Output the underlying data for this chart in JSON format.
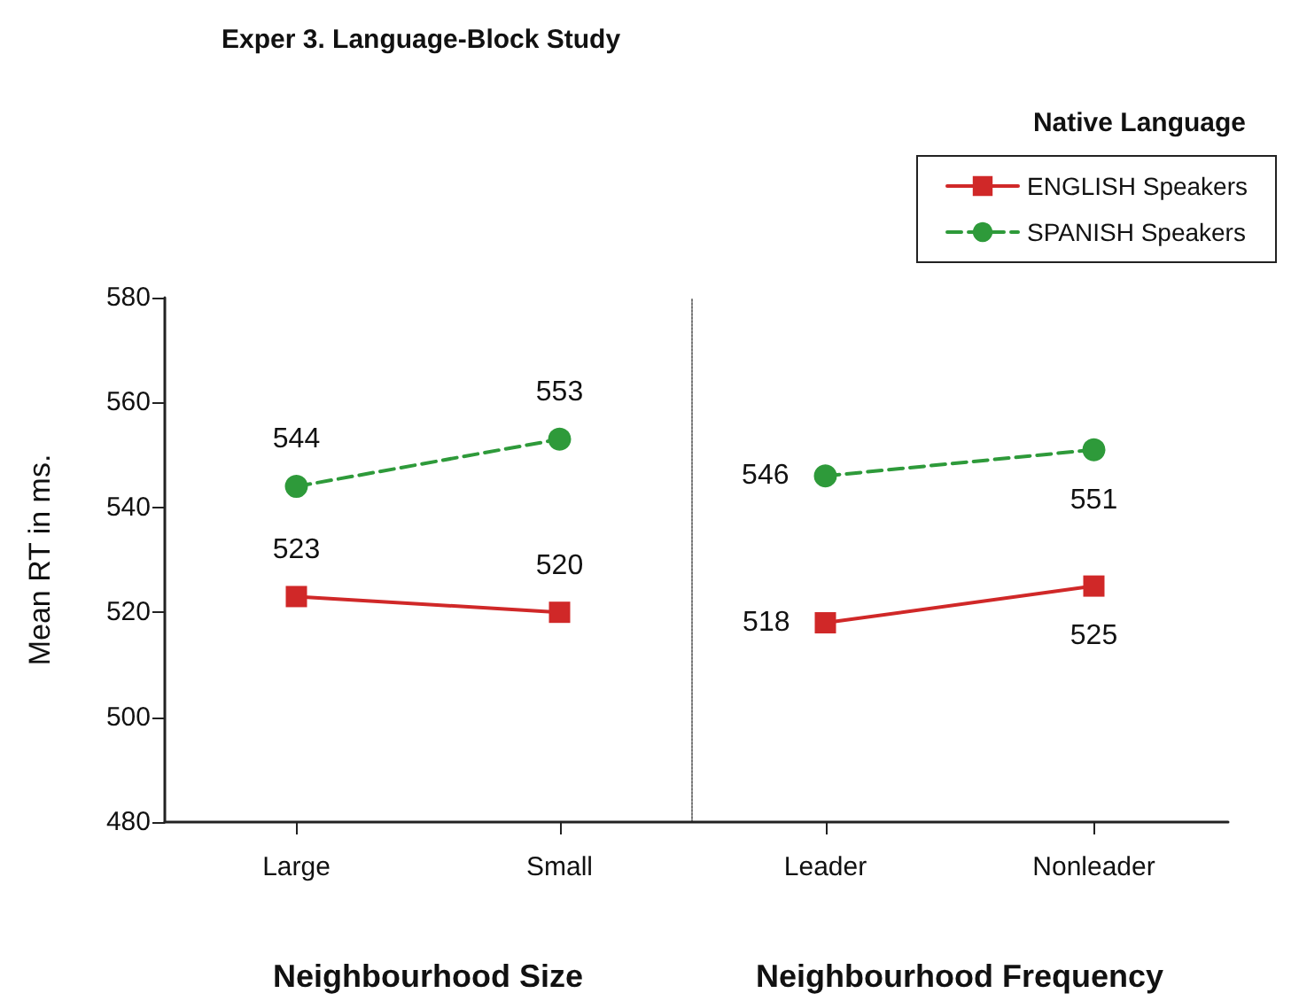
{
  "chart_data": [
    {
      "type": "line",
      "title": "Exper 3. Language-Block Study",
      "ylabel": "Mean RT in ms.",
      "xlabel": "Neighbourhood Size",
      "categories": [
        "Large",
        "Small"
      ],
      "ylim": [
        480,
        580
      ],
      "yticks": [
        480,
        500,
        520,
        540,
        560,
        580
      ],
      "data_labels": true,
      "grid": false,
      "legend": false,
      "series": [
        {
          "color": "#d02828",
          "values": [
            523,
            520
          ],
          "marker": "square",
          "line_style": "solid"
        },
        {
          "color": "#2e9a3a",
          "values": [
            544,
            553
          ],
          "marker": "circle",
          "line_style": "dashed"
        }
      ]
    },
    {
      "type": "line",
      "xlabel": "Neighbourhood Frequency",
      "categories": [
        "Leader",
        "Nonleader"
      ],
      "ylim": [
        480,
        580
      ],
      "yticks": [
        480,
        500,
        520,
        540,
        560,
        580
      ],
      "tick_labels": "x",
      "data_labels": true,
      "grid": false,
      "legend": "top right",
      "legend_title": "Native Language",
      "series": [
        {
          "name": "ENGLISH Speakers",
          "color": "#d02828",
          "values": [
            518,
            525
          ],
          "marker": "square",
          "line_style": "solid"
        },
        {
          "name": "SPANISH Speakers",
          "color": "#2e9a3a",
          "values": [
            546,
            551
          ],
          "marker": "circle",
          "line_style": "dashed"
        }
      ]
    }
  ]
}
